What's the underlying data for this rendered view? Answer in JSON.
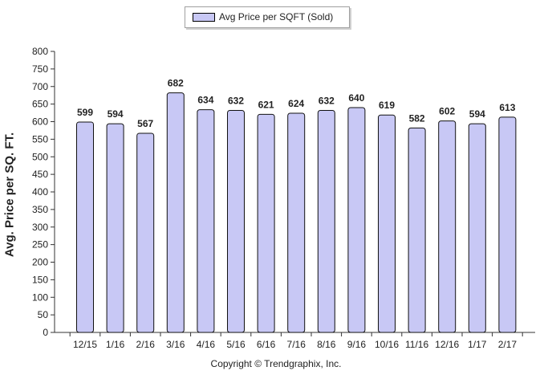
{
  "legend": {
    "label": "Avg Price per SQFT (Sold)"
  },
  "footer": {
    "copyright": "Copyright © Trendgraphix, Inc."
  },
  "colors": {
    "bar_fill": "#c8c8f5",
    "bar_stroke": "#111111",
    "axis": "#333333"
  },
  "chart_data": {
    "type": "bar",
    "categories": [
      "12/15",
      "1/16",
      "2/16",
      "3/16",
      "4/16",
      "5/16",
      "6/16",
      "7/16",
      "8/16",
      "9/16",
      "10/16",
      "11/16",
      "12/16",
      "1/17",
      "2/17"
    ],
    "series": [
      {
        "name": "Avg Price per SQFT (Sold)",
        "values": [
          599,
          594,
          567,
          682,
          634,
          632,
          621,
          624,
          632,
          640,
          619,
          582,
          602,
          594,
          613
        ]
      }
    ],
    "xlabel": "",
    "ylabel": "Avg. Price per SQ. FT.",
    "ylim": [
      0,
      800
    ],
    "yticks": [
      0,
      50,
      100,
      150,
      200,
      250,
      300,
      350,
      400,
      450,
      500,
      550,
      600,
      650,
      700,
      750,
      800
    ],
    "grid": false,
    "legend_position": "top-center",
    "data_labels": true
  }
}
